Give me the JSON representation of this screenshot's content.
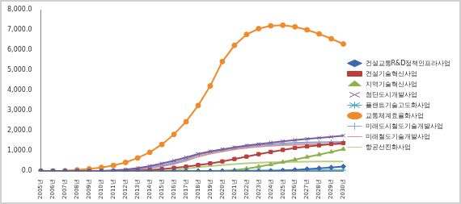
{
  "chart_data": {
    "type": "line",
    "categories": [
      "2005년",
      "2006년",
      "2007년",
      "2008년",
      "2009년",
      "2010년",
      "2011년",
      "2012년",
      "2013년",
      "2014년",
      "2015년",
      "2016년",
      "2017년",
      "2018년",
      "2019년",
      "2020년",
      "2021년",
      "2022년",
      "2023년",
      "2024년",
      "2025년",
      "2026년",
      "2027년",
      "2028년",
      "2029년",
      "2030년"
    ],
    "series": [
      {
        "name": "건설교통R&D정책인프라사업",
        "color": "#3f67b1",
        "marker": "diamond",
        "values": [
          0,
          0,
          0,
          0,
          0,
          0,
          0,
          0,
          0,
          0,
          0,
          0,
          0,
          0,
          0,
          0,
          0,
          0,
          0,
          10,
          30,
          60,
          100,
          140,
          180,
          230
        ]
      },
      {
        "name": "건설기술혁신사업",
        "color": "#b8403c",
        "marker": "square",
        "values": [
          0,
          0,
          0,
          0,
          0,
          0,
          0,
          10,
          30,
          60,
          100,
          160,
          220,
          300,
          380,
          480,
          600,
          720,
          840,
          950,
          1050,
          1150,
          1220,
          1280,
          1340,
          1390
        ]
      },
      {
        "name": "지역기술혁신사업",
        "color": "#8fb04a",
        "marker": "triangle",
        "values": [
          0,
          0,
          0,
          0,
          0,
          0,
          0,
          0,
          0,
          0,
          0,
          0,
          0,
          0,
          0,
          10,
          50,
          120,
          220,
          330,
          450,
          570,
          700,
          820,
          950,
          1090
        ]
      },
      {
        "name": "첨단도시개발사업",
        "color": "#7a5c9f",
        "marker": "x",
        "values": [
          0,
          0,
          0,
          0,
          0,
          10,
          40,
          80,
          150,
          250,
          380,
          520,
          680,
          850,
          980,
          1080,
          1180,
          1270,
          1340,
          1410,
          1480,
          1540,
          1600,
          1650,
          1700,
          1760
        ]
      },
      {
        "name": "플랜트기술고도화사업",
        "color": "#3fa5c2",
        "marker": "star",
        "values": [
          0,
          0,
          0,
          0,
          0,
          0,
          0,
          0,
          0,
          0,
          0,
          0,
          0,
          5,
          10,
          15,
          20,
          20,
          25,
          25,
          30,
          30,
          35,
          35,
          40,
          40
        ]
      },
      {
        "name": "교통체계효율화사업",
        "color": "#f08a2a",
        "marker": "circle",
        "values": [
          0,
          5,
          20,
          60,
          110,
          180,
          280,
          430,
          650,
          930,
          1320,
          1820,
          2450,
          3250,
          4220,
          5430,
          6230,
          6770,
          7060,
          7200,
          7230,
          7150,
          7000,
          6800,
          6560,
          6300
        ]
      },
      {
        "name": "미래도시철도기술개발사업",
        "color": "#8aa3d6",
        "marker": "plus",
        "values": [
          0,
          0,
          0,
          0,
          0,
          0,
          20,
          60,
          120,
          200,
          280,
          420,
          580,
          820,
          950,
          1050,
          1150,
          1230,
          1290,
          1330,
          1370,
          1400,
          1420,
          1430,
          1440,
          1450
        ]
      },
      {
        "name": "미래철도기술개발사업",
        "color": "#e0918c",
        "marker": "none",
        "values": [
          0,
          0,
          0,
          0,
          0,
          0,
          10,
          40,
          90,
          160,
          240,
          360,
          520,
          720,
          870,
          980,
          1080,
          1160,
          1220,
          1260,
          1290,
          1310,
          1320,
          1330,
          1340,
          1350
        ]
      },
      {
        "name": "항공선진화사업",
        "color": "#b5cf84",
        "marker": "none",
        "values": [
          0,
          0,
          0,
          0,
          0,
          0,
          0,
          0,
          0,
          0,
          20,
          60,
          120,
          200,
          250,
          300,
          350,
          390,
          420,
          440,
          450,
          460,
          470,
          475,
          478,
          480
        ]
      }
    ],
    "ylim": [
      0,
      8000
    ],
    "yticks": [
      {
        "value": 0,
        "label": "0.0"
      },
      {
        "value": 1000,
        "label": "1,000.0"
      },
      {
        "value": 2000,
        "label": "2,000.0"
      },
      {
        "value": 3000,
        "label": "3,000.0"
      },
      {
        "value": 4000,
        "label": "4,000.0"
      },
      {
        "value": 5000,
        "label": "5,000.0"
      },
      {
        "value": 6000,
        "label": "6,000.0"
      },
      {
        "value": 7000,
        "label": "7,000.0"
      },
      {
        "value": 8000,
        "label": "8,000.0"
      }
    ],
    "grid": false,
    "legend": "right"
  }
}
